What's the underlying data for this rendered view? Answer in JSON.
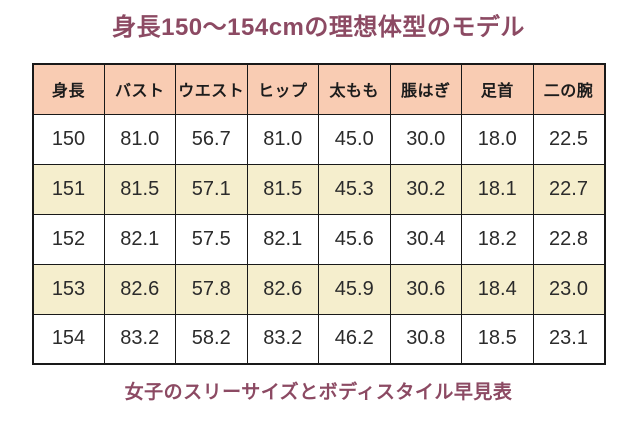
{
  "title": "身長150〜154cmの理想体型のモデル",
  "caption": "女子のスリーサイズとボディスタイル早見表",
  "colors": {
    "accent_text": "#8c4a63",
    "header_bg": "#f9ccb3",
    "alt_row_bg": "#f5eecd",
    "border": "#191919",
    "cell_text": "#2b2b2b"
  },
  "chart_data": {
    "type": "table",
    "title": "身長150〜154cmの理想体型のモデル",
    "caption": "女子のスリーサイズとボディスタイル早見表",
    "columns": [
      "身長",
      "バスト",
      "ウエスト",
      "ヒップ",
      "太もも",
      "脹はぎ",
      "足首",
      "二の腕"
    ],
    "rows": [
      [
        "150",
        "81.0",
        "56.7",
        "81.0",
        "45.0",
        "30.0",
        "18.0",
        "22.5"
      ],
      [
        "151",
        "81.5",
        "57.1",
        "81.5",
        "45.3",
        "30.2",
        "18.1",
        "22.7"
      ],
      [
        "152",
        "82.1",
        "57.5",
        "82.1",
        "45.6",
        "30.4",
        "18.2",
        "22.8"
      ],
      [
        "153",
        "82.6",
        "57.8",
        "82.6",
        "45.9",
        "30.6",
        "18.4",
        "23.0"
      ],
      [
        "154",
        "83.2",
        "58.2",
        "83.2",
        "46.2",
        "30.8",
        "18.5",
        "23.1"
      ]
    ],
    "alt_row_indices": [
      1,
      3
    ],
    "layout": {
      "header_fill": "#f9ccb3",
      "alt_row_fill": "#f5eecd",
      "grid": true
    }
  }
}
